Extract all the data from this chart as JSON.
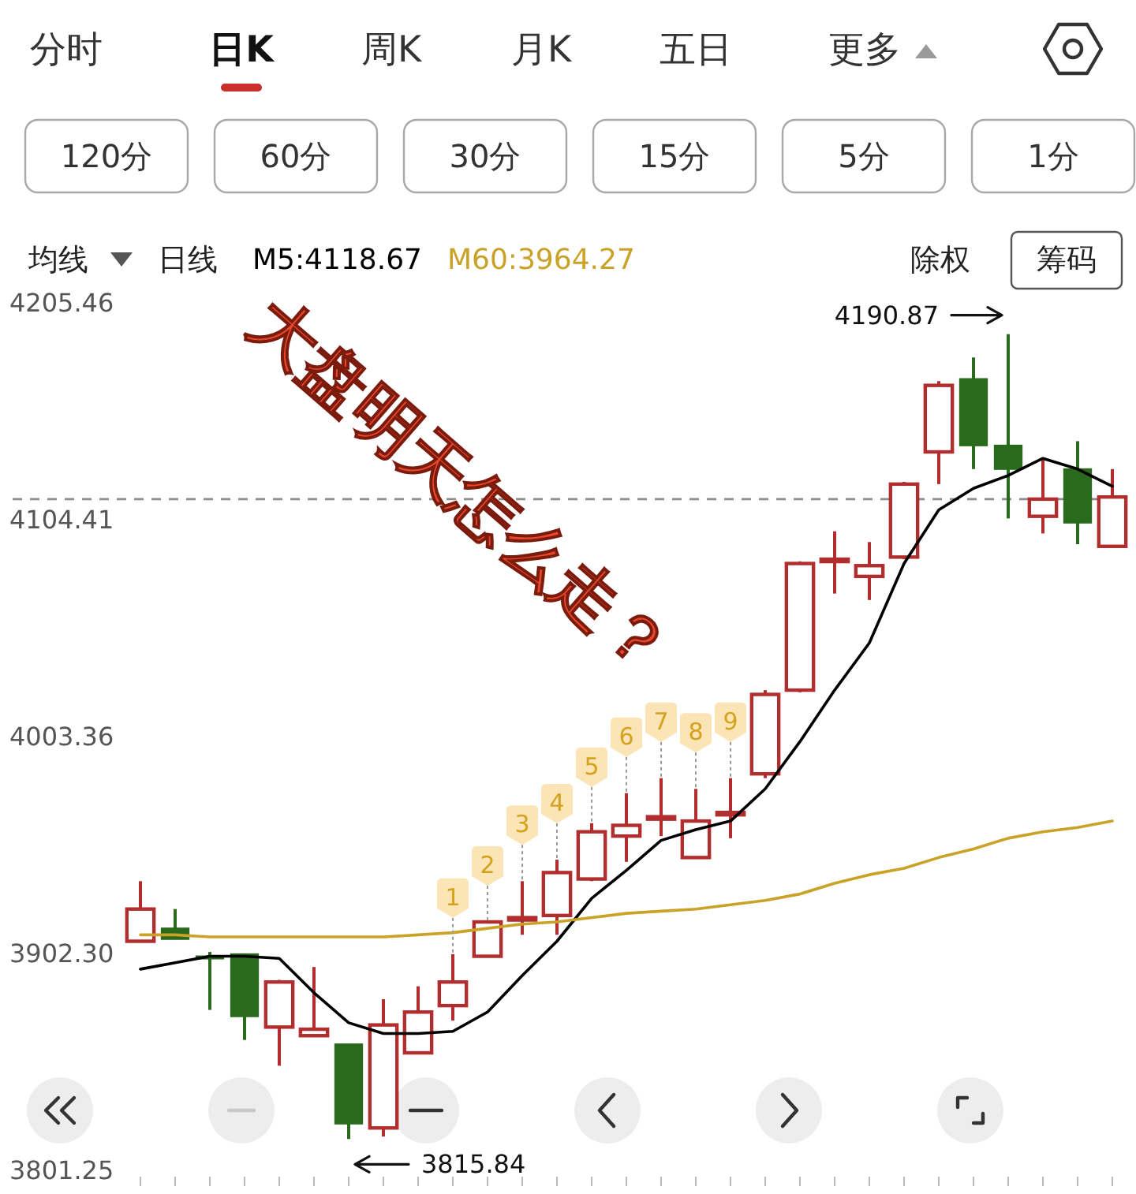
{
  "chart_data": {
    "type": "candlestick",
    "title": "大盘明天怎么走？",
    "categories": [
      null,
      null,
      null,
      null,
      null,
      null,
      null,
      null,
      null,
      null,
      null,
      null,
      null,
      null,
      null,
      null,
      null,
      null,
      null,
      null,
      null,
      null,
      null,
      null,
      null,
      null,
      null,
      null,
      null
    ],
    "ohlc": [
      [
        3908,
        3936,
        3908,
        3923
      ],
      [
        3914,
        3923,
        3909,
        3909
      ],
      [
        3901,
        3903,
        3876,
        3900
      ],
      [
        3902,
        3902,
        3862,
        3873
      ],
      [
        3868,
        3890,
        3850,
        3889
      ],
      [
        3864,
        3896,
        3864,
        3867
      ],
      [
        3860,
        3860,
        3815.84,
        3823
      ],
      [
        3821,
        3881,
        3817,
        3869
      ],
      [
        3856,
        3887,
        3856,
        3875
      ],
      [
        3878,
        3902,
        3871,
        3889
      ],
      [
        3901,
        3917,
        3901,
        3917
      ],
      [
        3918,
        3936,
        3911,
        3919
      ],
      [
        3920,
        3946,
        3911,
        3940
      ],
      [
        3937,
        3963,
        3936,
        3959
      ],
      [
        3957,
        3977,
        3945,
        3962
      ],
      [
        3965,
        3984,
        3957,
        3966
      ],
      [
        3947,
        3979,
        3947,
        3964
      ],
      [
        3967,
        3984,
        3956,
        3968
      ],
      [
        3986,
        4025,
        3984,
        4023
      ],
      [
        4025,
        4085,
        4024,
        4084
      ],
      [
        4085,
        4099,
        4070,
        4086
      ],
      [
        4078,
        4094,
        4067,
        4083
      ],
      [
        4087,
        4122,
        4086,
        4121
      ],
      [
        4136,
        4169,
        4121,
        4167
      ],
      [
        4170,
        4180,
        4128,
        4139
      ],
      [
        4139,
        4190.87,
        4105,
        4128
      ],
      [
        4106,
        4133,
        4098,
        4114
      ],
      [
        4128,
        4141,
        4093,
        4103
      ],
      [
        4092,
        4128,
        4092,
        4115
      ]
    ],
    "colors": [
      "#b22d2d",
      "#2a6a1c",
      "#2a6a1c",
      "#2a6a1c",
      "#b22d2d",
      "#b22d2d",
      "#2a6a1c",
      "#b22d2d",
      "#b22d2d",
      "#b22d2d",
      "#b22d2d",
      "#b22d2d",
      "#b22d2d",
      "#b22d2d",
      "#b22d2d",
      "#b22d2d",
      "#b22d2d",
      "#b22d2d",
      "#b22d2d",
      "#b22d2d",
      "#b22d2d",
      "#b22d2d",
      "#b22d2d",
      "#b22d2d",
      "#2a6a1c",
      "#2a6a1c",
      "#b22d2d",
      "#2a6a1c",
      "#b22d2d"
    ],
    "series": [
      {
        "name": "M5:4118.67",
        "type": "line",
        "color": "#000000",
        "values": [
          3895,
          3898,
          3901,
          3901,
          3900,
          3884,
          3870,
          3865,
          3865,
          3866,
          3875,
          3892,
          3908,
          3928,
          3941,
          3955,
          3960,
          3964,
          3979,
          4001,
          4025,
          4047,
          4084,
          4109,
          4119,
          4125,
          4133,
          4128,
          4120
        ]
      },
      {
        "name": "M60:3964.27",
        "type": "line",
        "color": "#c9a227",
        "values": [
          3911,
          3911,
          3910,
          3910,
          3910,
          3910,
          3910,
          3910,
          3911,
          3912,
          3914,
          3916,
          3917,
          3919,
          3921,
          3922,
          3923,
          3925,
          3927,
          3930,
          3935,
          3939,
          3942,
          3947,
          3951,
          3956,
          3959,
          3961,
          3964
        ]
      }
    ],
    "value_labels": [
      null,
      null,
      null,
      null,
      null,
      null,
      null,
      null,
      null,
      "1",
      "2",
      "3",
      "4",
      "5",
      "6",
      "7",
      "8",
      "9",
      null,
      null,
      null,
      null,
      null,
      null,
      null,
      null,
      null,
      null,
      null
    ],
    "ylim": [
      3801.25,
      4205.46
    ],
    "yticks": [
      4205.46,
      4104.41,
      4003.36,
      {
        "value": 3902.3,
        "label": "3902.30"
      },
      3801.25
    ],
    "tick_labels": "y",
    "legend": "top",
    "ref_lines": [
      {
        "axis": "y",
        "value": 4114,
        "color": "#8c8c8c",
        "line_style": "dashed"
      }
    ],
    "annotations": [
      "分时",
      "日K",
      "周K",
      "月K",
      "五日",
      "更多",
      "120分",
      "60分",
      "30分",
      "15分",
      "5分",
      "1分",
      "均线",
      "日线",
      "除权",
      "筹码",
      "4190.87",
      "3815.84"
    ]
  }
}
